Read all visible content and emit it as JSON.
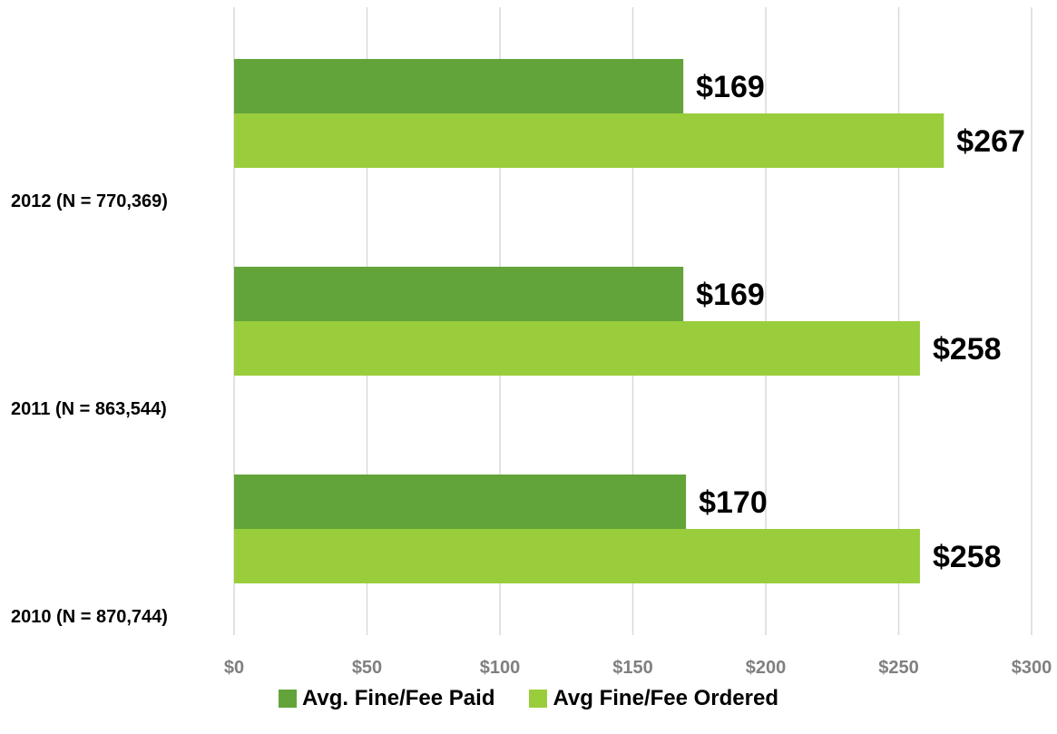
{
  "chart_data": {
    "type": "bar",
    "orientation": "horizontal",
    "categories": [
      "2012 (N = 770,369)",
      "2011 (N = 863,544)",
      "2010 (N = 870,744)"
    ],
    "series": [
      {
        "name": "Avg. Fine/Fee Paid",
        "color": "#62a43a",
        "values": [
          169,
          169,
          170
        ],
        "labels": [
          "$169",
          "$169",
          "$170"
        ]
      },
      {
        "name": "Avg Fine/Fee Ordered",
        "color": "#9acd3c",
        "values": [
          267,
          258,
          258
        ],
        "labels": [
          "$267",
          "$258",
          "$258"
        ]
      }
    ],
    "xlim": [
      0,
      300
    ],
    "xticks": [
      0,
      50,
      100,
      150,
      200,
      250,
      300
    ],
    "xtick_labels": [
      "$0",
      "$50",
      "$100",
      "$150",
      "$200",
      "$250",
      "$300"
    ],
    "grid": "vertical",
    "legend_position": "bottom",
    "title": "",
    "xlabel": "",
    "ylabel": ""
  }
}
